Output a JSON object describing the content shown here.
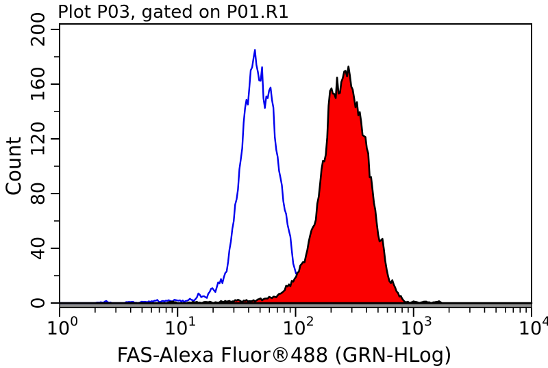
{
  "figure": {
    "background": "#ffffff",
    "frame_color": "#000000",
    "baseline_band_color": "#8f8f8f",
    "text_color": "#000000"
  },
  "chart_data": {
    "type": "area",
    "chart_kind": "flow-cytometry-overlay-histogram",
    "title": "Plot P03, gated on P01.R1",
    "xlabel": "FAS-Alexa Fluor®488 (GRN-HLog)",
    "ylabel": "Count",
    "x_scale": "log10",
    "x_range": [
      1,
      10000
    ],
    "y_range": [
      0,
      200
    ],
    "y_major_ticks": [
      0,
      40,
      80,
      120,
      160,
      200
    ],
    "y_minor_tick_step": 20,
    "x_tick_base": "10",
    "x_major_tick_exponents": [
      0,
      1,
      2,
      3,
      4
    ],
    "grid": "off",
    "legend": "none",
    "render": {
      "sample_step_decades": 0.012,
      "jitter_sqrt_scale": 0.55,
      "seed": 11
    },
    "series": [
      {
        "id": "open-blue-histogram",
        "stroke": "#0000ee",
        "fill": "none",
        "stroke_width": 2.4,
        "peak": {
          "x": 46,
          "count": 188
        },
        "points": [
          [
            1,
            0
          ],
          [
            1.5,
            0
          ],
          [
            2,
            0
          ],
          [
            2.5,
            1
          ],
          [
            2.8,
            0
          ],
          [
            3.4,
            0
          ],
          [
            4,
            1
          ],
          [
            4.6,
            0
          ],
          [
            5.2,
            1
          ],
          [
            6,
            1
          ],
          [
            6.6,
            2
          ],
          [
            7.2,
            1
          ],
          [
            8,
            2
          ],
          [
            8.8,
            1
          ],
          [
            9.6,
            2
          ],
          [
            10.5,
            2
          ],
          [
            11.4,
            1
          ],
          [
            12.4,
            3
          ],
          [
            13.4,
            2
          ],
          [
            14.4,
            3
          ],
          [
            15,
            6
          ],
          [
            15.8,
            4
          ],
          [
            16.6,
            5
          ],
          [
            17.5,
            4
          ],
          [
            18.4,
            7
          ],
          [
            19.3,
            9
          ],
          [
            20.2,
            11
          ],
          [
            21,
            9
          ],
          [
            22,
            13
          ],
          [
            23,
            16
          ],
          [
            24,
            15
          ],
          [
            25,
            19
          ],
          [
            26,
            25
          ],
          [
            27,
            33
          ],
          [
            28,
            42
          ],
          [
            29,
            52
          ],
          [
            30,
            63
          ],
          [
            31,
            72
          ],
          [
            32,
            81
          ],
          [
            33,
            93
          ],
          [
            34,
            103
          ],
          [
            35,
            113
          ],
          [
            36,
            125
          ],
          [
            37,
            134
          ],
          [
            38,
            143
          ],
          [
            39,
            149
          ],
          [
            40,
            155
          ],
          [
            41,
            161
          ],
          [
            42,
            167
          ],
          [
            43,
            172
          ],
          [
            44,
            176
          ],
          [
            45,
            181
          ],
          [
            46,
            188
          ],
          [
            46.6,
            181
          ],
          [
            47.2,
            175
          ],
          [
            48,
            168
          ],
          [
            49,
            163
          ],
          [
            50,
            162
          ],
          [
            51,
            171
          ],
          [
            52,
            168
          ],
          [
            53,
            159
          ],
          [
            54,
            152
          ],
          [
            55,
            148
          ],
          [
            56,
            145
          ],
          [
            57,
            144
          ],
          [
            58,
            148
          ],
          [
            59.5,
            152
          ],
          [
            61,
            156
          ],
          [
            62,
            148
          ],
          [
            63,
            143
          ],
          [
            64,
            141
          ],
          [
            66,
            131
          ],
          [
            68,
            119
          ],
          [
            70,
            108
          ],
          [
            72,
            99
          ],
          [
            75,
            91
          ],
          [
            78,
            81
          ],
          [
            80,
            75
          ],
          [
            82,
            69
          ],
          [
            84,
            63
          ],
          [
            86,
            58
          ],
          [
            88,
            53
          ],
          [
            90,
            48
          ],
          [
            92,
            42
          ],
          [
            94,
            35
          ],
          [
            96,
            28
          ],
          [
            98,
            25
          ],
          [
            100,
            23
          ],
          [
            104,
            19
          ],
          [
            108,
            16
          ],
          [
            113,
            13
          ],
          [
            119,
            10
          ],
          [
            126,
            7
          ],
          [
            134,
            5
          ],
          [
            143,
            3
          ],
          [
            153,
            2
          ],
          [
            165,
            1
          ],
          [
            178,
            1
          ],
          [
            190,
            0
          ],
          [
            210,
            0
          ]
        ]
      },
      {
        "id": "filled-red-histogram",
        "stroke": "#000000",
        "fill": "#fb0000",
        "stroke_width": 2.6,
        "peak": {
          "x": 280,
          "count": 173
        },
        "points": [
          [
            1,
            0
          ],
          [
            2,
            0
          ],
          [
            3,
            0
          ],
          [
            4,
            0
          ],
          [
            5,
            0
          ],
          [
            6,
            0
          ],
          [
            7,
            0
          ],
          [
            8,
            0
          ],
          [
            9,
            1
          ],
          [
            10,
            0
          ],
          [
            12,
            0
          ],
          [
            14,
            1
          ],
          [
            16,
            0
          ],
          [
            18,
            1
          ],
          [
            20,
            0
          ],
          [
            23,
            1
          ],
          [
            26,
            1
          ],
          [
            29,
            1
          ],
          [
            32,
            2
          ],
          [
            35,
            1
          ],
          [
            38,
            2
          ],
          [
            41,
            1
          ],
          [
            44,
            2
          ],
          [
            47,
            2
          ],
          [
            50,
            3
          ],
          [
            53,
            2
          ],
          [
            56,
            3
          ],
          [
            59,
            4
          ],
          [
            62,
            5
          ],
          [
            65,
            4
          ],
          [
            68,
            5
          ],
          [
            71,
            6
          ],
          [
            74,
            7
          ],
          [
            77,
            8
          ],
          [
            80,
            9
          ],
          [
            83,
            11
          ],
          [
            86,
            12
          ],
          [
            90,
            13
          ],
          [
            94,
            15
          ],
          [
            98,
            17
          ],
          [
            102,
            19
          ],
          [
            106,
            22
          ],
          [
            110,
            25
          ],
          [
            115,
            28
          ],
          [
            120,
            33
          ],
          [
            125,
            38
          ],
          [
            130,
            44
          ],
          [
            136,
            52
          ],
          [
            142,
            58
          ],
          [
            148,
            64
          ],
          [
            153,
            70
          ],
          [
            158,
            78
          ],
          [
            163,
            88
          ],
          [
            168,
            97
          ],
          [
            172,
            103
          ],
          [
            175,
            107
          ],
          [
            178,
            101
          ],
          [
            182,
            112
          ],
          [
            186,
            124
          ],
          [
            190,
            137
          ],
          [
            194,
            148
          ],
          [
            198,
            158
          ],
          [
            202,
            153
          ],
          [
            206,
            148
          ],
          [
            210,
            152
          ],
          [
            215,
            154
          ],
          [
            220,
            156
          ],
          [
            226,
            159
          ],
          [
            232,
            156
          ],
          [
            238,
            159
          ],
          [
            244,
            163
          ],
          [
            250,
            166
          ],
          [
            256,
            161
          ],
          [
            262,
            167
          ],
          [
            268,
            164
          ],
          [
            274,
            169
          ],
          [
            280,
            173
          ],
          [
            286,
            167
          ],
          [
            292,
            159
          ],
          [
            298,
            154
          ],
          [
            305,
            150
          ],
          [
            312,
            151
          ],
          [
            320,
            148
          ],
          [
            330,
            146
          ],
          [
            340,
            143
          ],
          [
            350,
            137
          ],
          [
            360,
            130
          ],
          [
            370,
            127
          ],
          [
            380,
            124
          ],
          [
            392,
            120
          ],
          [
            403,
            116
          ],
          [
            412,
            106
          ],
          [
            422,
            97
          ],
          [
            430,
            91
          ],
          [
            440,
            87
          ],
          [
            449,
            85
          ],
          [
            458,
            77
          ],
          [
            468,
            68
          ],
          [
            478,
            65
          ],
          [
            488,
            57
          ],
          [
            496,
            52
          ],
          [
            504,
            50
          ],
          [
            515,
            48
          ],
          [
            528,
            47
          ],
          [
            540,
            45
          ],
          [
            552,
            41
          ],
          [
            561,
            38
          ],
          [
            572,
            31
          ],
          [
            585,
            27
          ],
          [
            598,
            23
          ],
          [
            612,
            20
          ],
          [
            626,
            18
          ],
          [
            640,
            17
          ],
          [
            655,
            15
          ],
          [
            670,
            14
          ],
          [
            686,
            12
          ],
          [
            703,
            10
          ],
          [
            720,
            8
          ],
          [
            740,
            6
          ],
          [
            760,
            5
          ],
          [
            785,
            4
          ],
          [
            810,
            2
          ],
          [
            840,
            1
          ],
          [
            880,
            1
          ],
          [
            930,
            0
          ],
          [
            1020,
            1
          ],
          [
            1120,
            0
          ],
          [
            1260,
            1
          ],
          [
            1420,
            0
          ],
          [
            1620,
            1
          ],
          [
            1750,
            0
          ],
          [
            2200,
            0
          ],
          [
            4000,
            0
          ],
          [
            10000,
            0
          ]
        ]
      }
    ]
  }
}
